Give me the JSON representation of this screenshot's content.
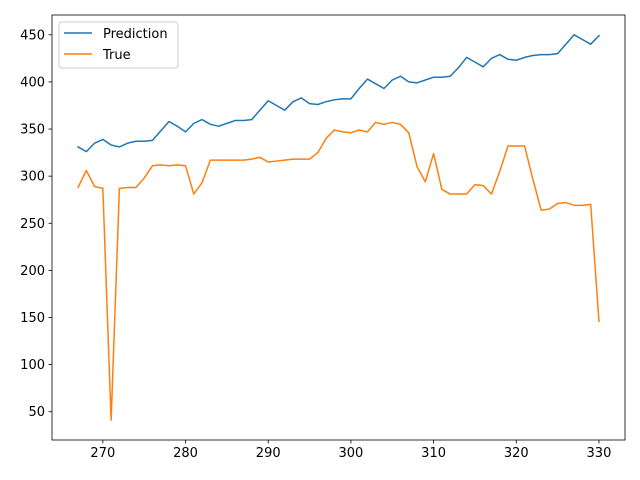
{
  "chart_data": {
    "type": "line",
    "title": "",
    "xlabel": "",
    "ylabel": "",
    "xlim": [
      263.85,
      333.15
    ],
    "ylim": [
      20,
      471
    ],
    "xticks": [
      270,
      280,
      290,
      300,
      310,
      320,
      330
    ],
    "yticks": [
      50,
      100,
      150,
      200,
      250,
      300,
      350,
      400,
      450
    ],
    "grid": false,
    "legend_position": "top-left",
    "x": [
      267,
      268,
      269,
      270,
      271,
      272,
      273,
      274,
      275,
      276,
      277,
      278,
      279,
      280,
      281,
      282,
      283,
      284,
      285,
      286,
      287,
      288,
      289,
      290,
      291,
      292,
      293,
      294,
      295,
      296,
      297,
      298,
      299,
      300,
      301,
      302,
      303,
      304,
      305,
      306,
      307,
      308,
      309,
      310,
      311,
      312,
      313,
      314,
      315,
      316,
      317,
      318,
      319,
      320,
      321,
      322,
      323,
      324,
      325,
      326,
      327,
      328,
      329,
      330
    ],
    "series": [
      {
        "name": "Prediction",
        "color": "#1f77b4",
        "values": [
          331,
          326,
          335,
          339,
          333,
          331,
          335,
          337,
          337,
          338,
          348,
          358,
          353,
          347,
          356,
          360,
          355,
          353,
          356,
          359,
          359,
          360,
          370,
          380,
          375,
          370,
          379,
          383,
          377,
          376,
          379,
          381,
          382,
          382,
          393,
          403,
          398,
          393,
          402,
          406,
          400,
          399,
          402,
          405,
          405,
          406,
          415,
          426,
          421,
          416,
          425,
          429,
          424,
          423,
          426,
          428,
          429,
          429,
          430,
          440,
          450,
          445,
          440,
          449
        ]
      },
      {
        "name": "True",
        "color": "#ff7f0e",
        "values": [
          288,
          306,
          289,
          287,
          41,
          287,
          288,
          288,
          298,
          311,
          312,
          311,
          312,
          311,
          281,
          293,
          317,
          317,
          317,
          317,
          317,
          318,
          320,
          315,
          316,
          317,
          318,
          318,
          318,
          325,
          340,
          349,
          347,
          346,
          349,
          347,
          357,
          355,
          357,
          355,
          346,
          310,
          294,
          324,
          286,
          281,
          281,
          281,
          291,
          290,
          281,
          305,
          332,
          332,
          332,
          297,
          264,
          265,
          271,
          272,
          269,
          269,
          270,
          146
        ]
      }
    ]
  }
}
